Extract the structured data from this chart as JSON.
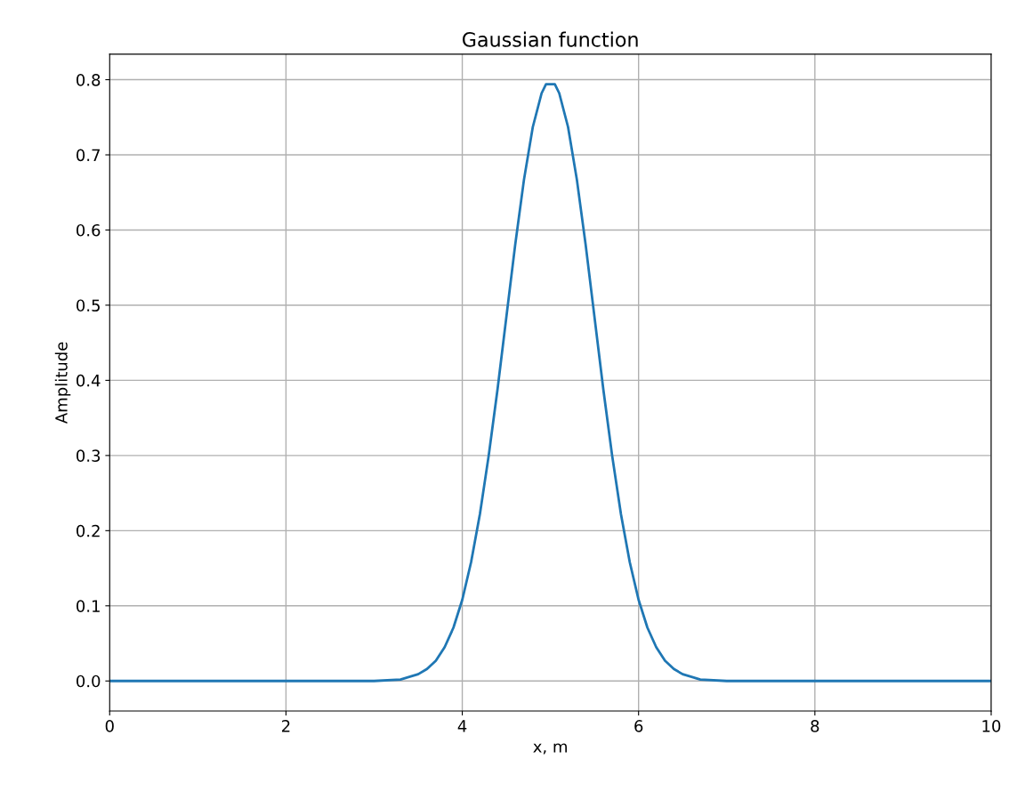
{
  "chart_data": {
    "type": "line",
    "title": "Gaussian function",
    "xlabel": "x, m",
    "ylabel": "Amplitude",
    "series": [
      {
        "color": "#1f77b4",
        "x": [
          0,
          1,
          2,
          3,
          3.3,
          3.5,
          3.6,
          3.7,
          3.8,
          3.9,
          4.0,
          4.1,
          4.2,
          4.3,
          4.4,
          4.5,
          4.6,
          4.7,
          4.8,
          4.9,
          4.95,
          5.05,
          5.1,
          5.2,
          5.3,
          5.4,
          5.5,
          5.6,
          5.7,
          5.8,
          5.9,
          6.0,
          6.1,
          6.2,
          6.3,
          6.4,
          6.5,
          6.7,
          7,
          8,
          9,
          10
        ],
        "values": [
          0,
          0,
          0,
          0,
          0.002,
          0.009,
          0.016,
          0.027,
          0.045,
          0.071,
          0.108,
          0.158,
          0.222,
          0.3,
          0.388,
          0.484,
          0.58,
          0.667,
          0.737,
          0.782,
          0.794,
          0.794,
          0.782,
          0.737,
          0.667,
          0.58,
          0.484,
          0.388,
          0.3,
          0.222,
          0.158,
          0.108,
          0.071,
          0.045,
          0.027,
          0.016,
          0.009,
          0.002,
          0,
          0,
          0,
          0
        ]
      }
    ],
    "xlim": [
      0,
      10
    ],
    "xticks": [
      0,
      2,
      4,
      6,
      8,
      10
    ],
    "ylim": [
      -0.04,
      0.834
    ],
    "yticks": [
      {
        "value": 0,
        "label": "0.0"
      },
      0.1,
      0.2,
      0.3,
      0.4,
      0.5,
      0.6,
      0.7,
      0.8
    ],
    "grid": true,
    "line_style": "solid",
    "marker": "none"
  }
}
